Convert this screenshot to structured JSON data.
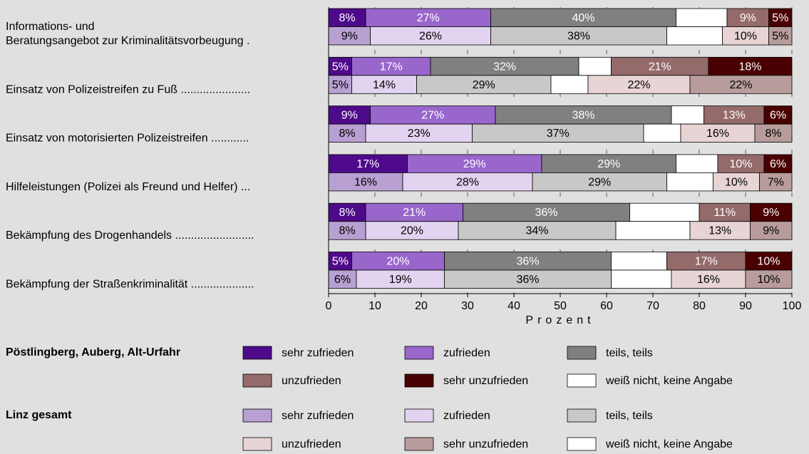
{
  "chart_data": {
    "type": "stacked-bar-grouped",
    "categories": [
      "Informations- und\nBeratungsangebot zur Kriminalitätsvorbeugung .",
      "Einsatz von Polizeistreifen zu Fuß ......................",
      "Einsatz von motorisierten Polizeistreifen ............",
      "Hilfeleistungen (Polizei als Freund und Helfer) ...",
      "Bekämpfung des Drogenhandels .........................",
      "Bekämpfung der Straßenkriminalität ...................."
    ],
    "xlabel": "Prozent",
    "xlim": [
      0,
      100
    ],
    "xticks": [
      0,
      10,
      20,
      30,
      40,
      50,
      60,
      70,
      80,
      90,
      100
    ],
    "grid": true,
    "groups": [
      {
        "name": "Pöstlingberg, Auberg, Alt-Urfahr",
        "label_color": "#ffffff",
        "series": [
          {
            "name": "sehr zufrieden",
            "color": "#4e0a8a",
            "values": [
              8,
              5,
              9,
              17,
              8,
              5
            ],
            "value_labels": [
              "8%",
              "5%",
              "9%",
              "17%",
              "8%",
              "5%"
            ]
          },
          {
            "name": "zufrieden",
            "color": "#9966cc",
            "values": [
              27,
              17,
              27,
              29,
              21,
              20
            ],
            "value_labels": [
              "27%",
              "17%",
              "27%",
              "29%",
              "21%",
              "20%"
            ]
          },
          {
            "name": "teils, teils",
            "color": "#808080",
            "values": [
              40,
              32,
              38,
              29,
              36,
              36
            ],
            "value_labels": [
              "40%",
              "32%",
              "38%",
              "29%",
              "36%",
              "36%"
            ]
          },
          {
            "name": "weiß nicht, keine Angabe",
            "color": "#ffffff",
            "values": [
              11,
              7,
              7,
              9,
              15,
              12
            ]
          },
          {
            "name": "unzufrieden",
            "color": "#946a6a",
            "values": [
              9,
              21,
              13,
              10,
              11,
              17
            ],
            "value_labels": [
              "9%",
              "21%",
              "13%",
              "10%",
              "11%",
              "17%"
            ]
          },
          {
            "name": "sehr unzufrieden",
            "color": "#4a0000",
            "values": [
              5,
              18,
              6,
              6,
              9,
              10
            ],
            "value_labels": [
              "5%",
              "18%",
              "6%",
              "6%",
              "9%",
              "10%"
            ]
          }
        ]
      },
      {
        "name": "Linz gesamt",
        "label_color": "#000000",
        "series": [
          {
            "name": "sehr zufrieden",
            "color": "#b9a0d2",
            "values": [
              9,
              5,
              8,
              16,
              8,
              6
            ],
            "value_labels": [
              "9%",
              "5%",
              "8%",
              "16%",
              "8%",
              "6%"
            ]
          },
          {
            "name": "zufrieden",
            "color": "#e2d4f0",
            "values": [
              26,
              14,
              23,
              28,
              20,
              19
            ],
            "value_labels": [
              "26%",
              "14%",
              "23%",
              "28%",
              "20%",
              "19%"
            ]
          },
          {
            "name": "teils, teils",
            "color": "#c8c8c8",
            "values": [
              38,
              29,
              37,
              29,
              34,
              36
            ],
            "value_labels": [
              "38%",
              "29%",
              "37%",
              "29%",
              "34%",
              "36%"
            ]
          },
          {
            "name": "weiß nicht, keine Angabe",
            "color": "#ffffff",
            "values": [
              12,
              8,
              8,
              10,
              16,
              13
            ]
          },
          {
            "name": "unzufrieden",
            "color": "#e8d4d4",
            "values": [
              10,
              22,
              16,
              10,
              13,
              16
            ],
            "value_labels": [
              "10%",
              "22%",
              "16%",
              "10%",
              "13%",
              "16%"
            ]
          },
          {
            "name": "sehr unzufrieden",
            "color": "#b89c9c",
            "values": [
              5,
              22,
              8,
              7,
              9,
              10
            ],
            "value_labels": [
              "5%",
              "22%",
              "8%",
              "7%",
              "9%",
              "10%"
            ]
          }
        ]
      }
    ]
  }
}
